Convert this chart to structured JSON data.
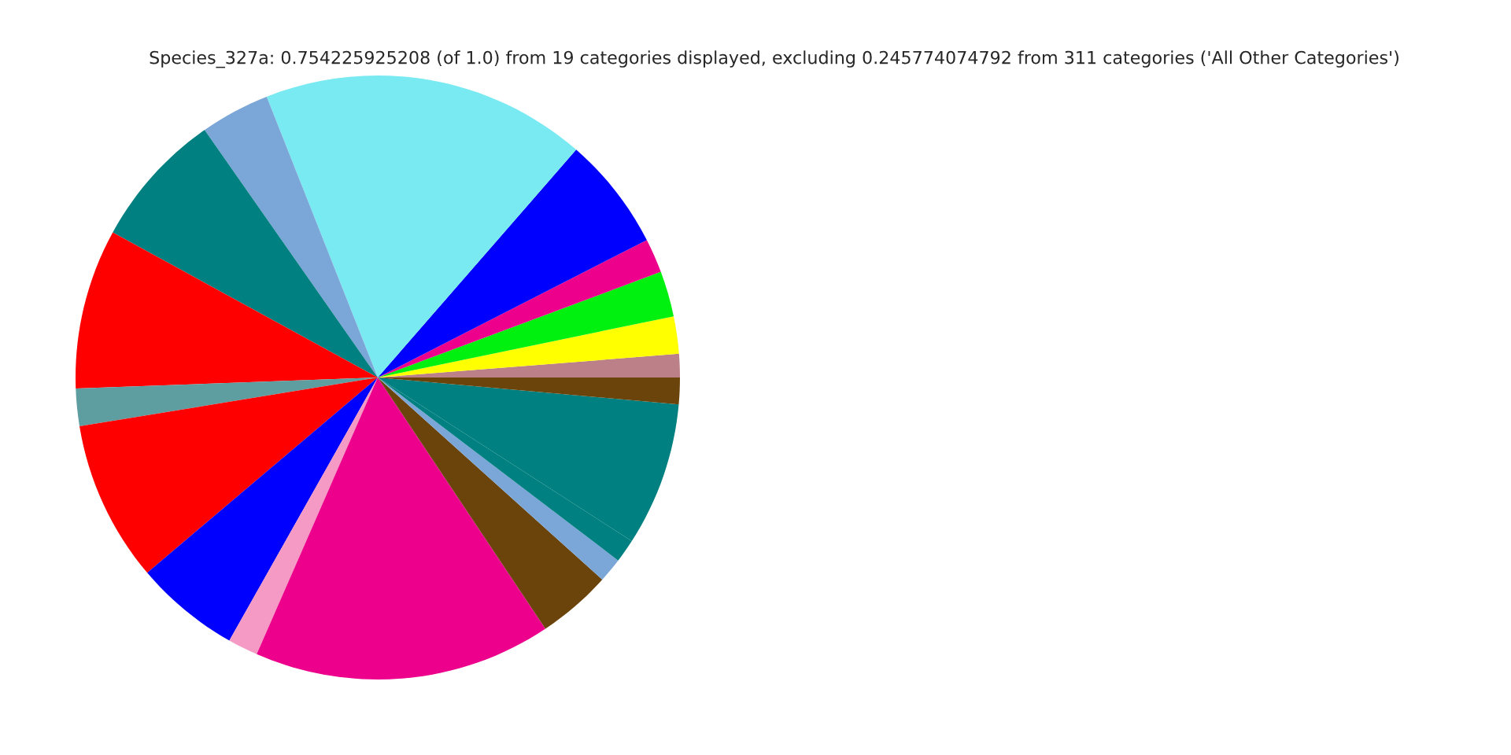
{
  "chart_data": {
    "type": "pie",
    "title": "Species_327a: 0.754225925208 (of 1.0) from 19 categories displayed, excluding 0.245774074792 from 311 categories ('All Other Categories')",
    "categories": [
      null,
      null,
      null,
      null,
      null,
      null,
      null,
      null,
      null,
      null,
      null,
      null,
      null,
      null,
      null,
      null,
      null,
      null,
      null
    ],
    "values": [
      1.25,
      2.0,
      2.44,
      1.83,
      6.08,
      17.39,
      3.72,
      7.31,
      8.56,
      2.0,
      8.61,
      5.64,
      1.61,
      15.92,
      3.97,
      1.31,
      1.25,
      7.69,
      1.42
    ],
    "colors": [
      "#bc8088",
      "#ffff00",
      "#00f010",
      "#ec008c",
      "#0000ff",
      "#7aeaf2",
      "#7ba6d8",
      "#008080",
      "#ff0000",
      "#5f9ea0",
      "#ff0000",
      "#0000ff",
      "#f49ac4",
      "#ec008c",
      "#6b440b",
      "#7ba6d8",
      "#008080",
      "#008080",
      "#6b440b"
    ]
  }
}
